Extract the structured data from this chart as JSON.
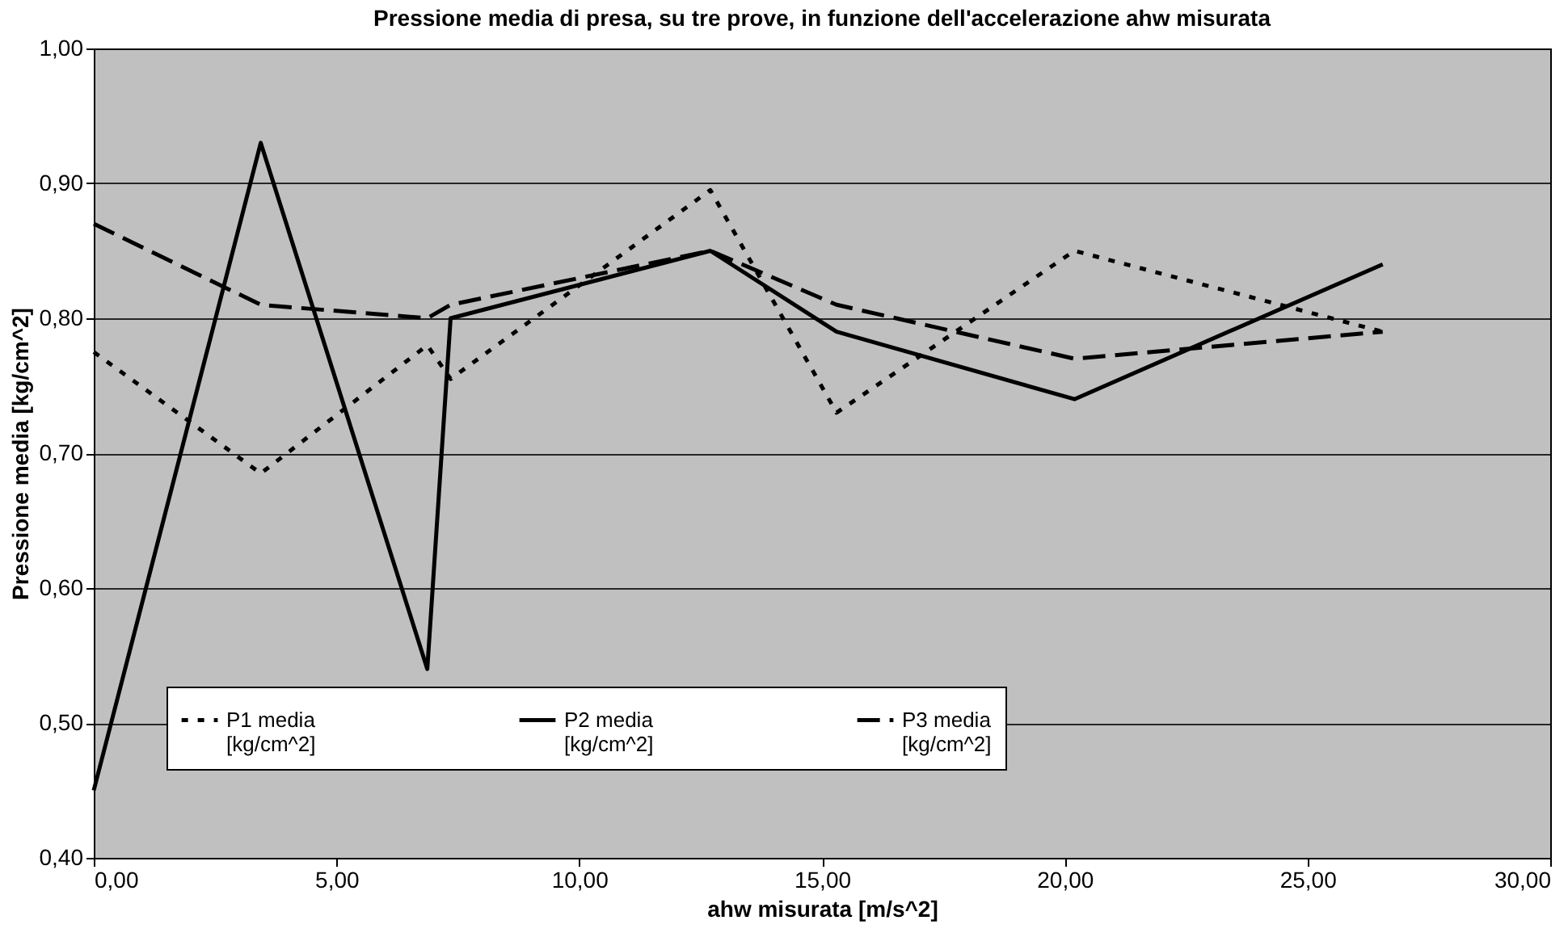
{
  "chart_data": {
    "type": "line",
    "title": "Pressione media di presa, su tre prove, in funzione dell'accelerazione ahw misurata",
    "xlabel": "ahw misurata [m/s^2]",
    "ylabel": "Pressione media [kg/cm^2]",
    "x": [
      0,
      3.44,
      6.87,
      7.35,
      12.7,
      15.3,
      20.2,
      26.55
    ],
    "series": [
      {
        "name": "P1 media\n[kg/cm^2]",
        "color": "#000000",
        "line_style": "dotted",
        "values": [
          0.775,
          0.685,
          0.78,
          0.755,
          0.895,
          0.73,
          0.85,
          0.79
        ]
      },
      {
        "name": "P2 media\n[kg/cm^2]",
        "color": "#000000",
        "line_style": "solid",
        "values": [
          0.45,
          0.93,
          0.54,
          0.8,
          0.85,
          0.79,
          0.74,
          0.84
        ]
      },
      {
        "name": "P3 media\n[kg/cm^2]",
        "color": "#000000",
        "line_style": "dashed",
        "values": [
          0.87,
          0.81,
          0.8,
          0.81,
          0.85,
          0.81,
          0.77,
          0.79
        ]
      }
    ],
    "xlim": [
      0,
      30
    ],
    "xticks": [
      {
        "value": 0,
        "label": "0,00"
      },
      {
        "value": 5,
        "label": "5,00"
      },
      {
        "value": 10,
        "label": "10,00"
      },
      {
        "value": 15,
        "label": "15,00"
      },
      {
        "value": 20,
        "label": "20,00"
      },
      {
        "value": 25,
        "label": "25,00"
      },
      {
        "value": 30,
        "label": "30,00"
      }
    ],
    "ylim": [
      0.4,
      1.0
    ],
    "yticks": [
      {
        "value": 0.4,
        "label": "0,40"
      },
      {
        "value": 0.5,
        "label": "0,50"
      },
      {
        "value": 0.6,
        "label": "0,60"
      },
      {
        "value": 0.7,
        "label": "0,70"
      },
      {
        "value": 0.8,
        "label": "0,80"
      },
      {
        "value": 0.9,
        "label": "0,90"
      },
      {
        "value": 1.0,
        "label": "1,00"
      }
    ],
    "grid": "y",
    "legend": "bottom",
    "marker": "none"
  }
}
